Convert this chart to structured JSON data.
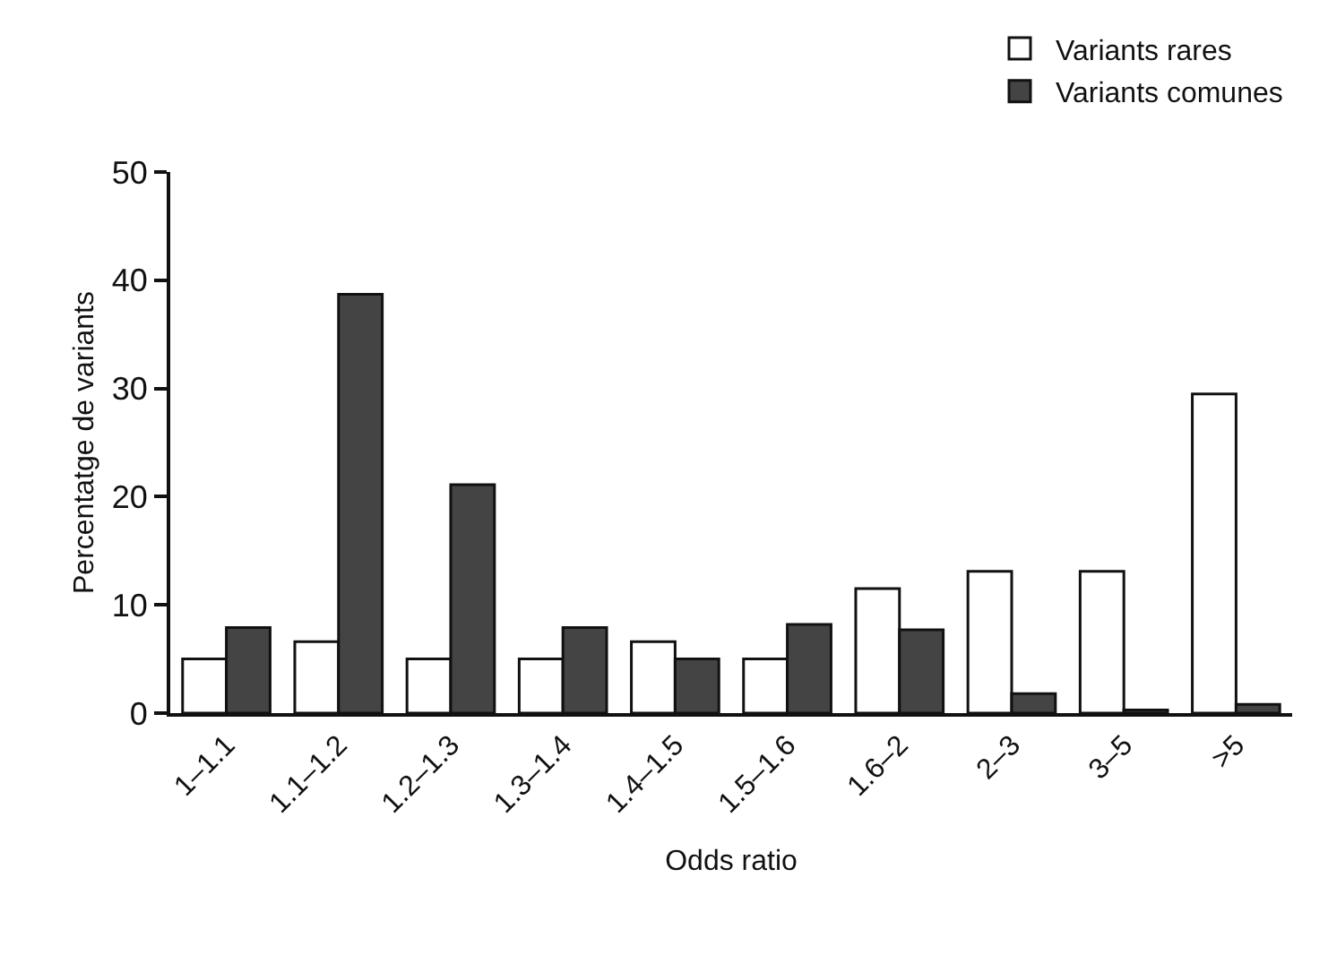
{
  "chart_data": {
    "type": "bar",
    "xlabel": "Odds ratio",
    "ylabel": "Percentatge de variants",
    "categories": [
      "1–1.1",
      "1.1–1.2",
      "1.2–1.3",
      "1.3–1.4",
      "1.4–1.5",
      "1.5–1.6",
      "1.6–2",
      "2–3",
      "3–5",
      ">5"
    ],
    "series": [
      {
        "name": "Variants rares",
        "color": "#ffffff",
        "values": [
          5,
          6.6,
          5,
          5,
          6.6,
          5,
          11.5,
          13.1,
          13.1,
          29.5
        ]
      },
      {
        "name": "Variants comunes",
        "color": "#444444",
        "values": [
          7.9,
          38.7,
          21.1,
          7.9,
          5,
          8.2,
          7.7,
          1.8,
          0.3,
          0.8
        ]
      }
    ],
    "ylim": [
      0,
      50
    ],
    "yticks": [
      0,
      10,
      20,
      30,
      40,
      50
    ],
    "grid": false,
    "legend": "top right"
  }
}
